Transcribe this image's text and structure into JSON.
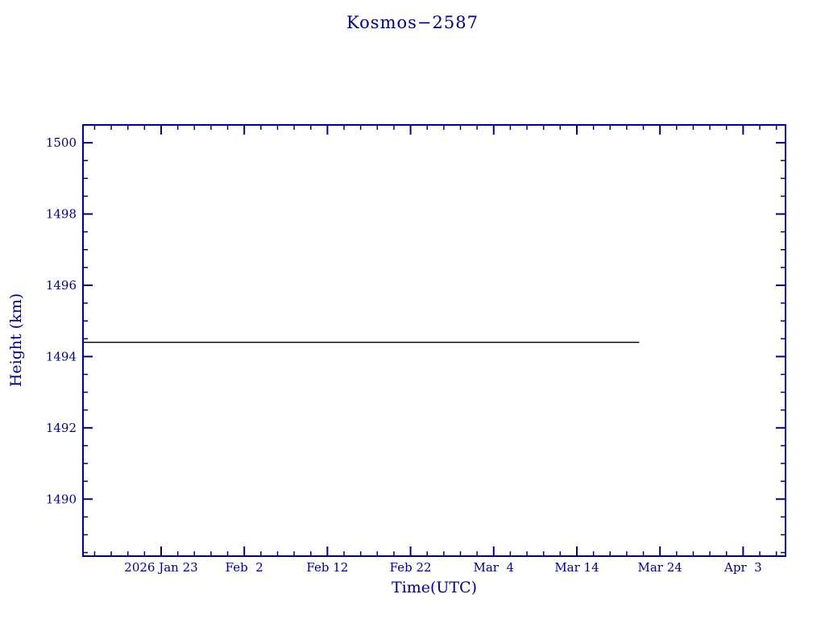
{
  "page": {
    "background": "#ffffff"
  },
  "chart_data": {
    "type": "line",
    "title": "Kosmos−2587",
    "xlabel": "Time(UTC)",
    "ylabel": "Height (km)",
    "axis_color": "#000080",
    "line_color": "#000000",
    "background": "#ffffff",
    "grid": false,
    "legend": "none",
    "x_axis": {
      "unit": "days-from-plot-start",
      "min": 0,
      "max": 84.5,
      "major_ticks": [
        9.4,
        19.4,
        29.4,
        39.4,
        49.4,
        59.4,
        69.4,
        79.4
      ],
      "tick_labels": [
        "2026 Jan 23",
        "Feb  2",
        "Feb 12",
        "Feb 22",
        "Mar  4",
        "Mar 14",
        "Mar 24",
        "Apr  3"
      ],
      "minor_step": 2
    },
    "y_axis": {
      "min": 1488.4,
      "max": 1500.5,
      "major_ticks": [
        1490,
        1492,
        1494,
        1496,
        1498,
        1500
      ],
      "tick_labels": [
        "1490",
        "1492",
        "1494",
        "1496",
        "1498",
        "1500"
      ],
      "minor_step": 0.5
    },
    "series": [
      {
        "name": "height",
        "x": [
          0,
          66.9
        ],
        "y": [
          1494.4,
          1494.4
        ]
      }
    ]
  }
}
